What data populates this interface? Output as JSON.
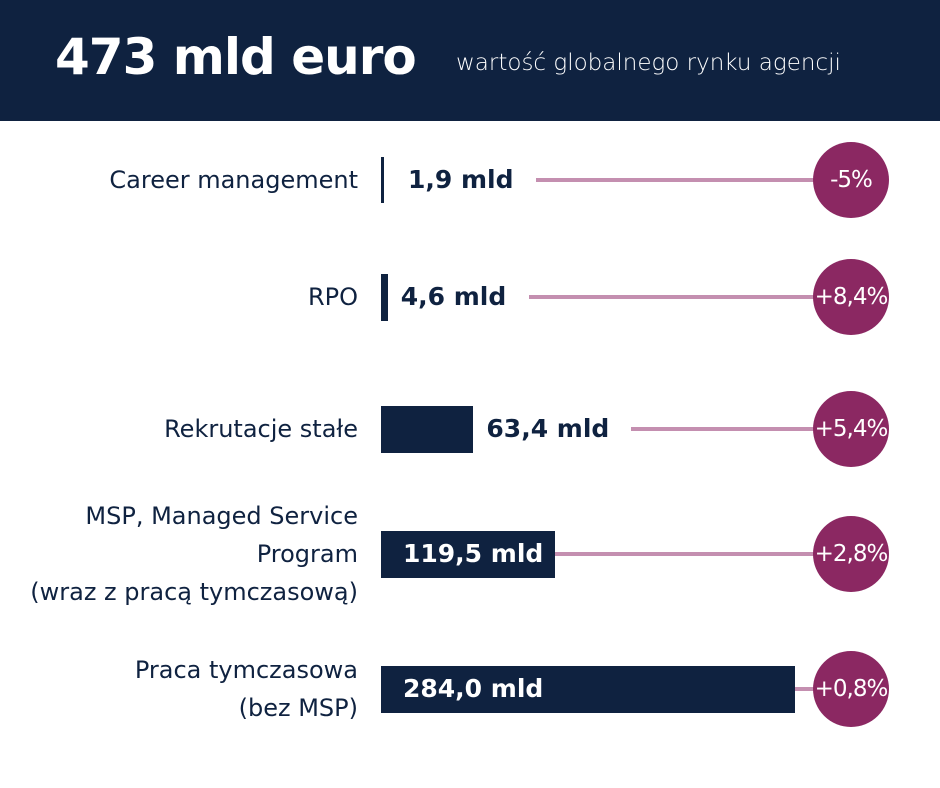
{
  "header": {
    "title": "473 mld euro",
    "subtitle": "wartość globalnego rynku agencji"
  },
  "colors": {
    "navy": "#0f2240",
    "accent": "#8b2862",
    "line": "#c48fb0"
  },
  "chart_data": {
    "type": "bar",
    "title": "473 mld euro",
    "subtitle": "wartość globalnego rynku agencji",
    "unit": "mld euro",
    "categories": [
      "Career management",
      "RPO",
      "Rekrutacje stałe",
      "MSP, Managed Service Program (wraz z pracą tymczasową)",
      "Praca tymczasowa (bez MSP)"
    ],
    "label_lines": [
      [
        "Career management"
      ],
      [
        "RPO"
      ],
      [
        "Rekrutacje stałe"
      ],
      [
        "MSP, Managed Service",
        "Program",
        "(wraz z pracą tymczasową)"
      ],
      [
        "Praca tymczasowa",
        "(bez MSP)"
      ]
    ],
    "values": [
      1.9,
      4.6,
      63.4,
      119.5,
      284.0
    ],
    "value_labels": [
      "1,9 mld",
      "4,6 mld",
      "63,4 mld",
      "119,5 mld",
      "284,0 mld"
    ],
    "growth_labels": [
      "-5%",
      "+8,4%",
      "+5,4%",
      "+2,8%",
      "+0,8%"
    ],
    "growth": [
      -5,
      8.4,
      5.4,
      2.8,
      0.8
    ]
  }
}
